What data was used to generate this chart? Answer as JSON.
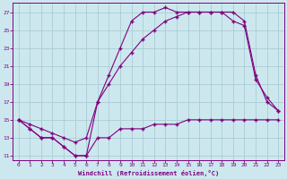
{
  "xlabel": "Windchill (Refroidissement éolien,°C)",
  "background_color": "#cce8ee",
  "grid_color": "#aaccd4",
  "line_color": "#800080",
  "xlim": [
    -0.5,
    23.5
  ],
  "ylim": [
    10.5,
    28.0
  ],
  "yticks": [
    11,
    13,
    15,
    17,
    19,
    21,
    23,
    25,
    27
  ],
  "xticks": [
    0,
    1,
    2,
    3,
    4,
    5,
    6,
    7,
    8,
    9,
    10,
    11,
    12,
    13,
    14,
    15,
    16,
    17,
    18,
    19,
    20,
    21,
    22,
    23
  ],
  "line1_x": [
    0,
    1,
    2,
    3,
    4,
    5,
    6,
    7,
    8,
    9,
    10,
    11,
    12,
    13,
    14,
    15,
    16,
    17,
    18,
    19,
    20,
    21,
    22,
    23
  ],
  "line1_y": [
    15,
    14,
    13,
    13,
    12,
    11,
    11,
    13,
    13,
    14,
    14,
    14,
    14.5,
    14.5,
    14.5,
    15,
    15,
    15,
    15,
    15,
    15,
    15,
    15,
    15
  ],
  "line2_x": [
    0,
    1,
    2,
    3,
    4,
    5,
    6,
    7,
    8,
    9,
    10,
    11,
    12,
    13,
    14,
    15,
    16,
    17,
    18,
    19,
    20,
    21,
    22,
    23
  ],
  "line2_y": [
    15,
    14,
    13,
    13,
    12,
    11,
    11,
    17,
    20,
    23,
    26,
    27,
    27,
    27.5,
    27,
    27,
    27,
    27,
    27,
    27,
    26,
    20,
    17,
    16
  ],
  "line3_x": [
    0,
    1,
    2,
    3,
    4,
    5,
    6,
    7,
    8,
    9,
    10,
    11,
    12,
    13,
    14,
    15,
    16,
    17,
    18,
    19,
    20,
    21,
    22,
    23
  ],
  "line3_y": [
    15,
    14.5,
    14,
    13.5,
    13,
    12.5,
    13,
    17,
    19,
    21,
    22.5,
    24,
    25,
    26,
    26.5,
    27,
    27,
    27,
    27,
    26,
    25.5,
    19.5,
    17.5,
    16
  ]
}
